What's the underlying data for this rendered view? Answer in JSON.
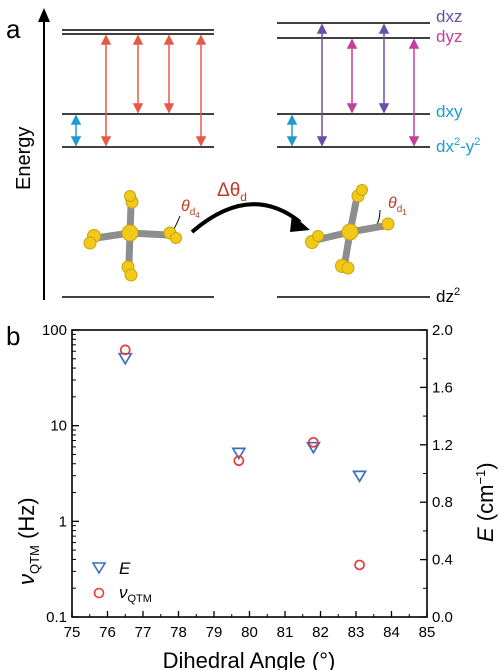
{
  "panel_a": {
    "label": "a",
    "energy_axis_label": "Energy",
    "orbitals": {
      "dxz": "dxz",
      "dyz": "dyz",
      "dxy": "dxy",
      "dx2y2_base": "dx",
      "dx2y2_sup": "2",
      "dx2y2_tail": "-y",
      "dx2y2_sup2": "2",
      "dz2_base": "dz",
      "dz2_sup": "2"
    },
    "delta_theta": {
      "symbol": "Δθ",
      "subscript": "d"
    },
    "theta_left": {
      "symbol": "θ",
      "sub": "d",
      "subsub": "4"
    },
    "theta_right": {
      "symbol": "θ",
      "sub": "d",
      "subsub": "1"
    },
    "colors": {
      "red_arrow": "#e8594a",
      "blue_arrow": "#1f9bd0",
      "purple_arrow": "#6a4fa8",
      "magenta_arrow": "#c2409b",
      "dxz_text": "#6a4fa8",
      "dyz_text": "#c2409b",
      "dxy_text": "#1f9bd0",
      "dx2y2_text": "#1f9bd0",
      "theta_text": "#c0392b",
      "gold": "#f2c919",
      "gray": "#8e8e8e"
    }
  },
  "panel_b": {
    "label": "b",
    "chart_data": {
      "type": "scatter",
      "xlabel": "Dihedral Angle (°)",
      "ylabel_left": {
        "symbol": "ν",
        "sub": "QTM",
        "unit": " (Hz)"
      },
      "ylabel_right": {
        "symbol": "E",
        "unit": " (cm",
        "sup": "−1",
        "close": ")"
      },
      "x_range": [
        75,
        85
      ],
      "x_ticks": [
        "75",
        "76",
        "77",
        "78",
        "79",
        "80",
        "81",
        "82",
        "83",
        "84",
        "85"
      ],
      "y_left_log_range": [
        0.1,
        100
      ],
      "y_left_ticks": [
        "0.1",
        "1",
        "10",
        "100"
      ],
      "y_right_range": [
        0.0,
        2.0
      ],
      "y_right_ticks": [
        "0.0",
        "0.4",
        "0.8",
        "1.2",
        "1.6",
        "2.0"
      ],
      "series": [
        {
          "name": "E",
          "axis": "right",
          "marker": "triangle-down",
          "color": "#3a6fc4",
          "x": [
            76.5,
            79.7,
            81.8,
            83.1
          ],
          "y": [
            1.8,
            1.14,
            1.18,
            0.98
          ]
        },
        {
          "name": "ν",
          "name_sub": "QTM",
          "axis": "left",
          "marker": "circle",
          "color": "#e63b3b",
          "x": [
            76.5,
            79.7,
            81.8,
            83.1
          ],
          "y": [
            62,
            4.3,
            6.7,
            0.35
          ]
        }
      ],
      "legend_position": "bottom-left"
    }
  }
}
